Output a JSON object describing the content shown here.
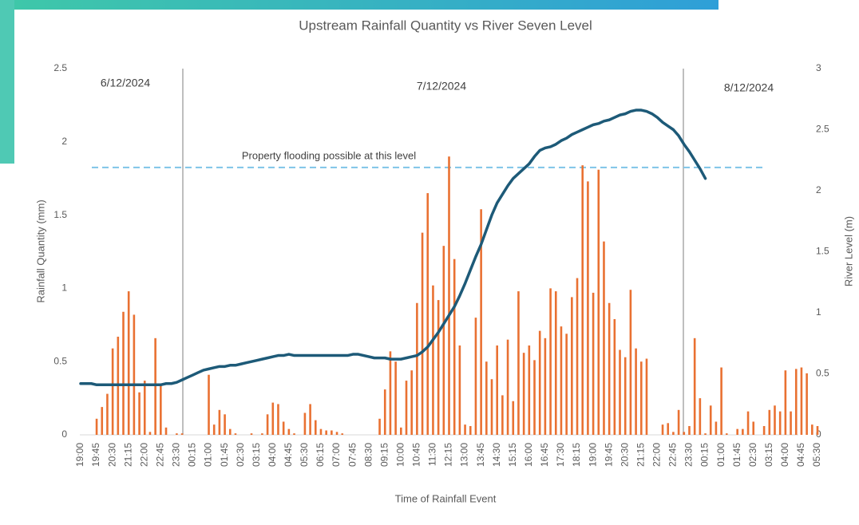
{
  "chart_data": {
    "type": "bar-line",
    "title": "Upstream Rainfall Quantity vs River Seven Level",
    "x_label": "Time of Rainfall Event",
    "y_label": "Rainfall Quantity (mm)",
    "y2_label": "River Level (m)",
    "annotations": [
      "6/12/2024",
      "7/12/2024",
      "8/12/2024"
    ],
    "threshold": {
      "value": 2.19,
      "label": "Property flooding possible at this level",
      "axis": "y2",
      "color": "#7fc4e8"
    },
    "categories": [
      "19:00",
      null,
      null,
      "19:45",
      null,
      null,
      "20:30",
      null,
      null,
      "21:15",
      null,
      null,
      "22:00",
      null,
      null,
      "22:45",
      null,
      null,
      "23:30",
      null,
      null,
      "00:15",
      null,
      null,
      "01:00",
      null,
      null,
      "01:45",
      null,
      null,
      "02:30",
      null,
      null,
      "03:15",
      null,
      null,
      "04:00",
      null,
      null,
      "04:45",
      null,
      null,
      "05:30",
      null,
      null,
      "06:15",
      null,
      null,
      "07:00",
      null,
      null,
      "07:45",
      null,
      null,
      "08:30",
      null,
      null,
      "09:15",
      null,
      null,
      "10:00",
      null,
      null,
      "10:45",
      null,
      null,
      "11:30",
      null,
      null,
      "12:15",
      null,
      null,
      "13:00",
      null,
      null,
      "13:45",
      null,
      null,
      "14:30",
      null,
      null,
      "15:15",
      null,
      null,
      "16:00",
      null,
      null,
      "16:45",
      null,
      null,
      "17:30",
      null,
      null,
      "18:15",
      null,
      null,
      "19:00",
      null,
      null,
      "19:45",
      null,
      null,
      "20:30",
      null,
      null,
      "21:15",
      null,
      null,
      "22:00",
      null,
      null,
      "22:45",
      null,
      null,
      "23:30",
      null,
      null,
      "00:15",
      null,
      null,
      "01:00",
      null,
      null,
      "01:45",
      null,
      null,
      "02:30",
      null,
      null,
      "03:15",
      null,
      null,
      "04:00",
      null,
      null,
      "04:45",
      null,
      null,
      "05:30"
    ],
    "series": [
      {
        "name": "Rainfall Quantity (mm)",
        "type": "bar",
        "color": "#e97132",
        "values": [
          0,
          0,
          0,
          0.11,
          0.19,
          0.28,
          0.59,
          0.67,
          0.84,
          0.98,
          0.82,
          0.29,
          0.37,
          0.02,
          0.66,
          0.35,
          0.05,
          0,
          0.01,
          0.01,
          0,
          0,
          0,
          0,
          0.41,
          0.07,
          0.17,
          0.14,
          0.04,
          0.01,
          0,
          0,
          0.01,
          0,
          0.01,
          0.14,
          0.22,
          0.21,
          0.09,
          0.04,
          0.01,
          0,
          0.15,
          0.21,
          0.1,
          0.04,
          0.03,
          0.03,
          0.02,
          0.01,
          0,
          0,
          0,
          0,
          0,
          0,
          0.11,
          0.31,
          0.57,
          0.5,
          0.05,
          0.37,
          0.44,
          0.9,
          1.38,
          1.65,
          1.02,
          0.92,
          1.29,
          1.9,
          1.2,
          0.61,
          0.07,
          0.06,
          0.8,
          1.54,
          0.5,
          0.38,
          0.61,
          0.27,
          0.65,
          0.23,
          0.98,
          0.56,
          0.61,
          0.51,
          0.71,
          0.66,
          1.0,
          0.98,
          0.74,
          0.69,
          0.94,
          1.07,
          1.84,
          1.73,
          0.97,
          1.81,
          1.32,
          0.9,
          0.79,
          0.58,
          0.53,
          0.99,
          0.59,
          0.5,
          0.52,
          0,
          0,
          0.07,
          0.08,
          0.02,
          0.17,
          0.02,
          0.06,
          0.66,
          0.25,
          0.01,
          0.2,
          0.09,
          0.46,
          0.01,
          0,
          0.04,
          0.04,
          0.16,
          0.09,
          0,
          0.06,
          0.17,
          0.2,
          0.16,
          0.44,
          0.16,
          0.45,
          0.46,
          0.42,
          0.07,
          0.06
        ]
      },
      {
        "name": "River Level (m)",
        "type": "line",
        "axis": "y2",
        "color": "#1d5a78",
        "values": [
          0.42,
          0.42,
          0.42,
          0.41,
          0.41,
          0.41,
          0.41,
          0.41,
          0.41,
          0.41,
          0.41,
          0.41,
          0.41,
          0.41,
          0.41,
          0.41,
          0.42,
          0.42,
          0.43,
          0.45,
          0.47,
          0.49,
          0.51,
          0.53,
          0.54,
          0.55,
          0.56,
          0.56,
          0.57,
          0.57,
          0.58,
          0.59,
          0.6,
          0.61,
          0.62,
          0.63,
          0.64,
          0.65,
          0.65,
          0.66,
          0.65,
          0.65,
          0.65,
          0.65,
          0.65,
          0.65,
          0.65,
          0.65,
          0.65,
          0.65,
          0.65,
          0.66,
          0.66,
          0.65,
          0.64,
          0.63,
          0.63,
          0.63,
          0.62,
          0.62,
          0.62,
          0.63,
          0.64,
          0.65,
          0.68,
          0.72,
          0.78,
          0.84,
          0.91,
          0.98,
          1.05,
          1.14,
          1.24,
          1.35,
          1.46,
          1.56,
          1.68,
          1.8,
          1.9,
          1.97,
          2.04,
          2.1,
          2.14,
          2.18,
          2.22,
          2.28,
          2.33,
          2.35,
          2.36,
          2.38,
          2.41,
          2.43,
          2.46,
          2.48,
          2.5,
          2.52,
          2.54,
          2.55,
          2.57,
          2.58,
          2.6,
          2.62,
          2.63,
          2.65,
          2.66,
          2.66,
          2.65,
          2.63,
          2.6,
          2.56,
          2.53,
          2.5,
          2.45,
          2.38,
          2.32,
          2.25,
          2.18,
          2.1,
          null,
          null,
          null,
          null,
          null,
          null,
          null,
          null,
          null,
          null,
          null,
          null,
          null,
          null,
          null,
          null,
          null,
          null,
          null,
          null,
          null
        ]
      }
    ],
    "ylim": [
      0,
      2.5
    ],
    "yticks": [
      0,
      0.5,
      1,
      1.5,
      2,
      2.5
    ],
    "y2lim": [
      0,
      3
    ],
    "y2ticks": [
      0,
      0.5,
      1,
      1.5,
      2,
      2.5,
      3
    ]
  }
}
